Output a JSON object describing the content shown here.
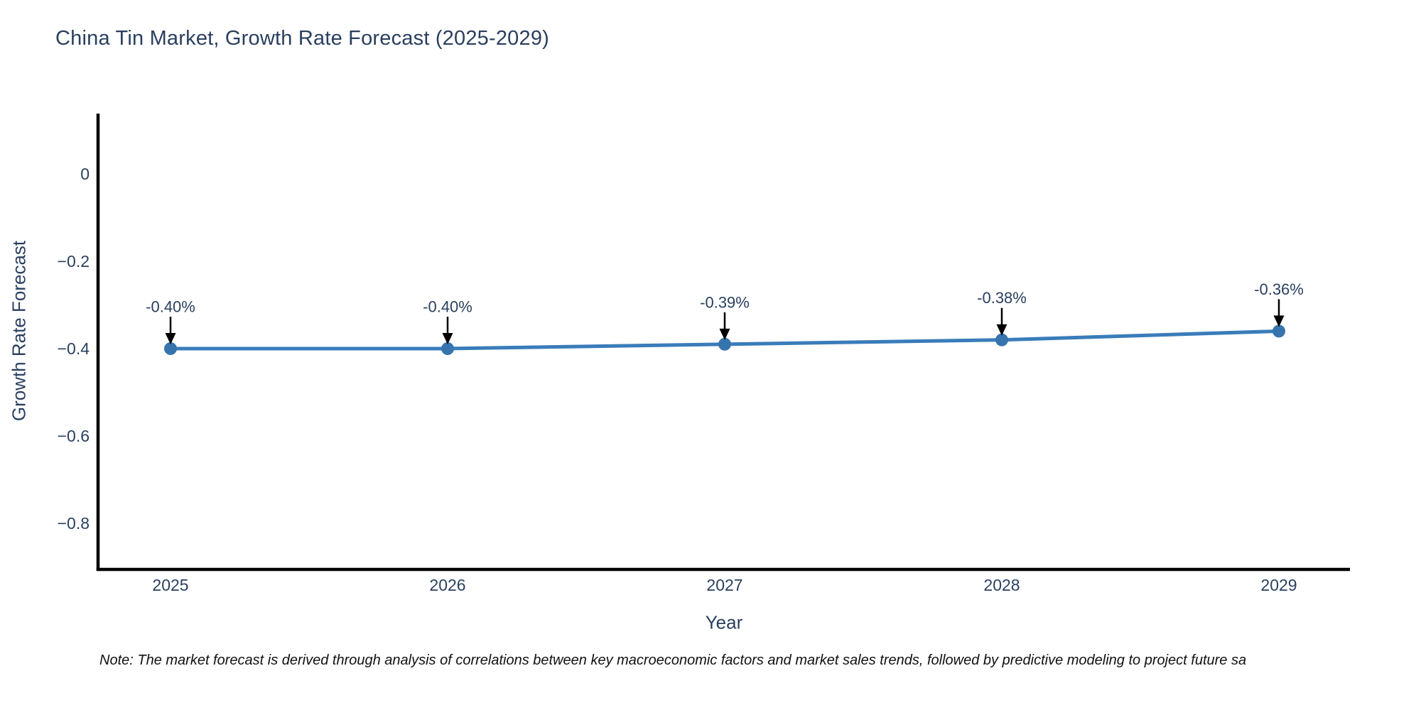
{
  "chart": {
    "note": "Note: The market forecast is derived through analysis of correlations between key macroeconomic factors and market sales trends, followed by predictive modeling to project future sa"
  },
  "chart_data": {
    "type": "line",
    "title": "China Tin Market, Growth Rate Forecast (2025-2029)",
    "xlabel": "Year",
    "ylabel": "Growth Rate Forecast",
    "categories": [
      "2025",
      "2026",
      "2027",
      "2028",
      "2029"
    ],
    "values": [
      -0.4,
      -0.4,
      -0.39,
      -0.38,
      -0.36
    ],
    "point_labels": [
      "-0.40%",
      "-0.40%",
      "-0.39%",
      "-0.38%",
      "-0.36%"
    ],
    "yticks": [
      0,
      -0.2,
      -0.4,
      -0.6,
      -0.8
    ],
    "ytick_labels": [
      "0",
      "−0.2",
      "−0.4",
      "−0.6",
      "−0.8"
    ],
    "ylim": [
      -0.906,
      0.138
    ],
    "xlim": [
      2024.74,
      2029.26
    ],
    "grid": false,
    "legend": "none",
    "marker": "circle",
    "annotation_arrows": true,
    "colors": {
      "line": "#3a7cba",
      "marker": "#3674ae",
      "text": "#2a3f5f",
      "axis": "#000000",
      "arrow": "#000000",
      "note": "#111111",
      "background": "#ffffff"
    }
  }
}
